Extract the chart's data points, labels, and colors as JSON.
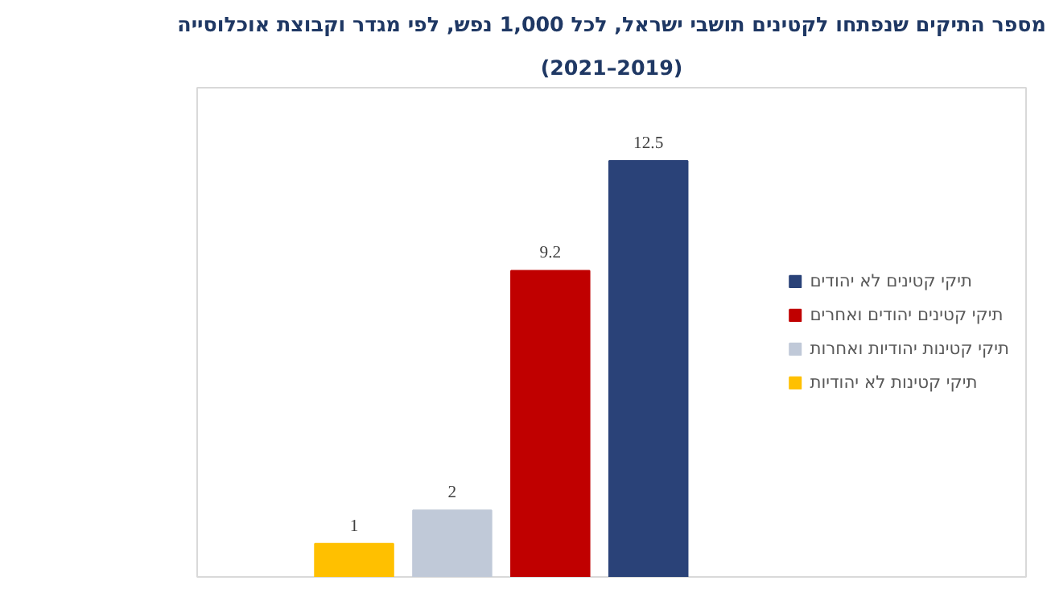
{
  "chart_data": {
    "type": "bar",
    "title": "מספר התיקים שנפתחו לקטינים תושבי ישראל, לכל 1,000 נפש, לפי מגדר וקבוצת אוכלוסייה",
    "subtitle": "(2021–2019)",
    "categories": [
      null
    ],
    "ylim": [
      0,
      14.7
    ],
    "data_labels": true,
    "legend": "right",
    "grid": false,
    "series": [
      {
        "name": "תיקי קטינות לא יהודיות",
        "color": "#ffc000",
        "values": [
          1
        ]
      },
      {
        "name": "תיקי קטינות יהודיות ואחרות",
        "color": "#c0c9d8",
        "values": [
          2
        ]
      },
      {
        "name": "תיקי קטינים יהודים ואחרים",
        "color": "#c00000",
        "values": [
          9.2
        ]
      },
      {
        "name": "תיקי קטינים לא יהודים",
        "color": "#2a4278",
        "values": [
          12.5
        ]
      }
    ]
  }
}
